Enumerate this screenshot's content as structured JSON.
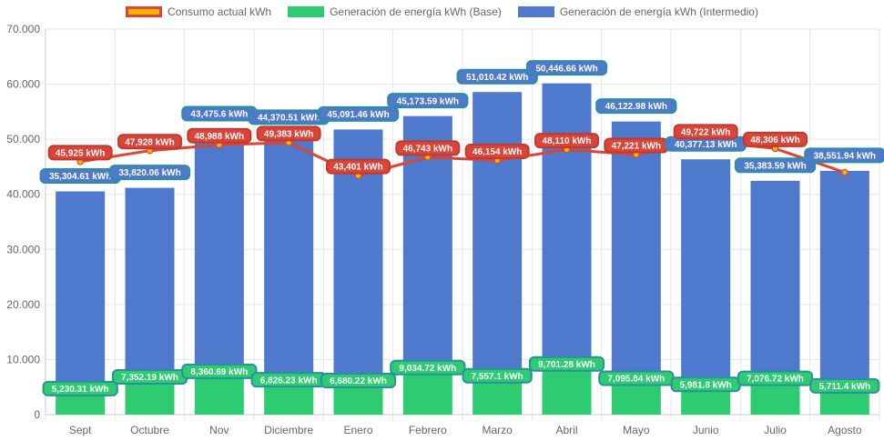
{
  "chart_data": {
    "type": "bar",
    "stacked": true,
    "categories": [
      "Sept",
      "Octubre",
      "Nov",
      "Diciembre",
      "Enero",
      "Febrero",
      "Marzo",
      "Abril",
      "Mayo",
      "Junio",
      "Julio",
      "Agosto"
    ],
    "ylim": [
      0,
      70000
    ],
    "yticks": [
      "0",
      "10.000",
      "20.000",
      "30.000",
      "40.000",
      "50.000",
      "60.000",
      "70.000"
    ],
    "grid": true,
    "legend_position": "top",
    "series": [
      {
        "name": "Consumo actual kWh",
        "type": "line",
        "color": "#db4437",
        "fill": "#f4b400",
        "values": [
          45925,
          47928,
          48988,
          49383,
          43401,
          46743,
          46154,
          48110,
          47221,
          49722,
          48306,
          43983
        ],
        "labels": [
          "45,925 kWh",
          "47,928 kWh",
          "48,988 kWh",
          "49,383 kWh",
          "43,401 kWh",
          "46,743 kWh",
          "46,154 kWh",
          "48,110 kWh",
          "47,221 kWh",
          "49,722 kWh",
          "48,306 kWh",
          ""
        ]
      },
      {
        "name": "Generación de energía kWh (Base)",
        "type": "bar",
        "color": "#2ecc71",
        "values": [
          5230.31,
          7352.19,
          8360.69,
          6826.23,
          6680.22,
          9034.72,
          7557.1,
          9701.28,
          7095.84,
          5981.8,
          7076.72,
          5711.4
        ],
        "labels": [
          "5,230.31 kWh",
          "7,352.19 kWh",
          "8,360.69 kWh",
          "6,826.23 kWh",
          "6,680.22 kWh",
          "9,034.72 kWh",
          "7,557.1 kWh",
          "9,701.28 kWh",
          "7,095.84 kWh",
          "5,981.8 kWh",
          "7,076.72 kWh",
          "5,711.4 kWh"
        ]
      },
      {
        "name": "Generación de energía kWh (Intermedio)",
        "type": "bar",
        "color": "#4e79cc",
        "values": [
          35304.61,
          33820.06,
          43475.6,
          44370.51,
          45091.46,
          45173.59,
          51010.42,
          50446.66,
          46122.98,
          40377.13,
          35383.59,
          38551.94
        ],
        "labels": [
          "35,304.61 kWh",
          "33,820.06 kWh",
          "43,475.6 kWh",
          "44,370.51 kWh",
          "45,091.46 kWh",
          "45,173.59 kWh",
          "51,010.42 kWh",
          "50,446.66 kWh",
          "46,122.98 kWh",
          "40,377.13 kWh",
          "35,383.59 kWh",
          "38,551.94 kWh"
        ]
      }
    ]
  }
}
